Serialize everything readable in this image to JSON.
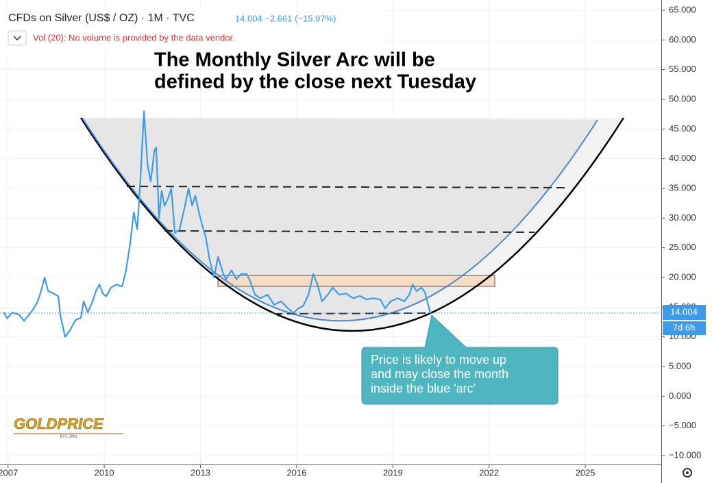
{
  "chart_data": {
    "type": "line",
    "title": "CFDs on Silver (US$ / OZ) · 1M · TVC",
    "quote": "14.004 −2.661 (−15.97%)",
    "volume_note": "Vol (20): No volume is provided by the data vendor.",
    "headline": [
      "The Monthly Silver Arc will be",
      "defined by the close next Tuesday"
    ],
    "callout": [
      "Price is likely to move up",
      "and may close the month",
      "inside the blue 'arc'"
    ],
    "logo": {
      "name": "GOLDPRICE",
      "established": "EST. 2002"
    },
    "price_tag": "14.004",
    "countdown": "7d 6h",
    "color": "#3d9be9",
    "grid": true,
    "x": [
      2006.86,
      2006.97,
      2007.14,
      2007.35,
      2007.5,
      2007.61,
      2007.78,
      2007.93,
      2008.03,
      2008.14,
      2008.25,
      2008.42,
      2008.57,
      2008.63,
      2008.78,
      2008.93,
      2009.1,
      2009.27,
      2009.36,
      2009.49,
      2009.64,
      2009.74,
      2009.85,
      2009.96,
      2010.06,
      2010.21,
      2010.38,
      2010.56,
      2010.68,
      2010.81,
      2010.92,
      2011.03,
      2011.13,
      2011.24,
      2011.35,
      2011.45,
      2011.56,
      2011.62,
      2011.71,
      2011.79,
      2011.88,
      2011.99,
      2012.09,
      2012.2,
      2012.35,
      2012.52,
      2012.63,
      2012.74,
      2012.84,
      2012.95,
      2013.06,
      2013.16,
      2013.29,
      2013.42,
      2013.55,
      2013.7,
      2013.8,
      2013.97,
      2014.12,
      2014.27,
      2014.44,
      2014.55,
      2014.7,
      2014.87,
      2015.09,
      2015.3,
      2015.51,
      2015.73,
      2015.9,
      2016.05,
      2016.2,
      2016.37,
      2016.52,
      2016.65,
      2016.79,
      2016.97,
      2017.12,
      2017.33,
      2017.54,
      2017.76,
      2017.97,
      2018.18,
      2018.4,
      2018.61,
      2018.76,
      2018.93,
      2019.15,
      2019.36,
      2019.51,
      2019.62,
      2019.74,
      2019.89,
      2020.0,
      2020.17
    ],
    "values": [
      14.2,
      13.1,
      14.1,
      13.7,
      12.7,
      13.4,
      14.6,
      16.0,
      17.7,
      20.0,
      17.7,
      17.3,
      16.8,
      13.7,
      10.0,
      11.1,
      12.8,
      13.2,
      16.0,
      14.1,
      16.0,
      17.7,
      18.8,
      17.3,
      16.8,
      18.3,
      18.8,
      18.5,
      21.2,
      25.8,
      31.0,
      28.1,
      36.7,
      48.0,
      39.0,
      36.2,
      41.3,
      41.9,
      30.0,
      34.6,
      32.1,
      33.3,
      35.0,
      27.5,
      28.1,
      32.1,
      35.0,
      32.1,
      33.8,
      31.0,
      28.7,
      26.9,
      22.9,
      20.0,
      23.5,
      20.8,
      19.7,
      21.2,
      19.7,
      20.6,
      20.6,
      19.4,
      17.1,
      16.5,
      17.1,
      15.4,
      16.0,
      14.8,
      14.0,
      14.8,
      15.2,
      17.1,
      20.6,
      18.8,
      16.0,
      17.1,
      18.3,
      17.1,
      17.3,
      16.5,
      16.9,
      16.3,
      16.5,
      16.3,
      14.8,
      16.0,
      16.5,
      16.0,
      17.1,
      18.8,
      17.7,
      18.3,
      17.5,
      14.0
    ],
    "xlim": [
      2006.75,
      2027.37
    ],
    "xticks": [
      2007,
      2010,
      2013,
      2016,
      2019,
      2022,
      2025
    ],
    "ylim": [
      -11.5,
      66.73
    ],
    "yticks": [
      {
        "value": 65,
        "label": "65.000"
      },
      {
        "value": 60,
        "label": "60.000"
      },
      {
        "value": 55,
        "label": "55.000"
      },
      {
        "value": 50,
        "label": "50.000"
      },
      {
        "value": 45,
        "label": "45.000"
      },
      {
        "value": 40,
        "label": "40.000"
      },
      {
        "value": 35,
        "label": "35.000"
      },
      {
        "value": 30,
        "label": "30.000"
      },
      {
        "value": 25,
        "label": "25.000"
      },
      {
        "value": 20,
        "label": "20.000"
      },
      {
        "value": 15,
        "label": "15.000"
      },
      {
        "value": 10,
        "label": "10.000"
      },
      {
        "value": 5,
        "label": "5.000"
      },
      {
        "value": 0,
        "label": "0.000"
      },
      {
        "value": -5,
        "label": "−5.000"
      },
      {
        "value": -10,
        "label": "−10.000"
      }
    ]
  }
}
